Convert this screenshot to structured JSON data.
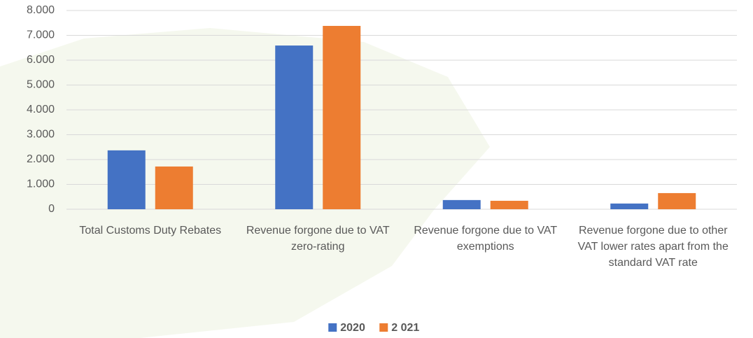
{
  "chart_data": {
    "type": "bar",
    "categories": [
      "Total Customs Duty Rebates",
      "Revenue forgone due to VAT zero-rating",
      "Revenue forgone due to VAT exemptions",
      "Revenue forgone due to other VAT lower rates apart from the standard VAT rate"
    ],
    "series": [
      {
        "name": "2020",
        "color": "#4472c4",
        "values": [
          2370,
          6590,
          370,
          230
        ]
      },
      {
        "name": "2 021",
        "color": "#ed7d31",
        "values": [
          1720,
          7380,
          340,
          650
        ]
      }
    ],
    "ylim": [
      0,
      8000
    ],
    "yticks": [
      0,
      {
        "value": 1000,
        "label": "1.000"
      },
      {
        "value": 2000,
        "label": "2.000"
      },
      {
        "value": 3000,
        "label": "3.000"
      },
      {
        "value": 4000,
        "label": "4.000"
      },
      {
        "value": 5000,
        "label": "5.000"
      },
      {
        "value": 6000,
        "label": "6.000"
      },
      {
        "value": 7000,
        "label": "7.000"
      },
      {
        "value": 8000,
        "label": "8.000"
      }
    ],
    "grid": true,
    "legend": "bottom"
  }
}
